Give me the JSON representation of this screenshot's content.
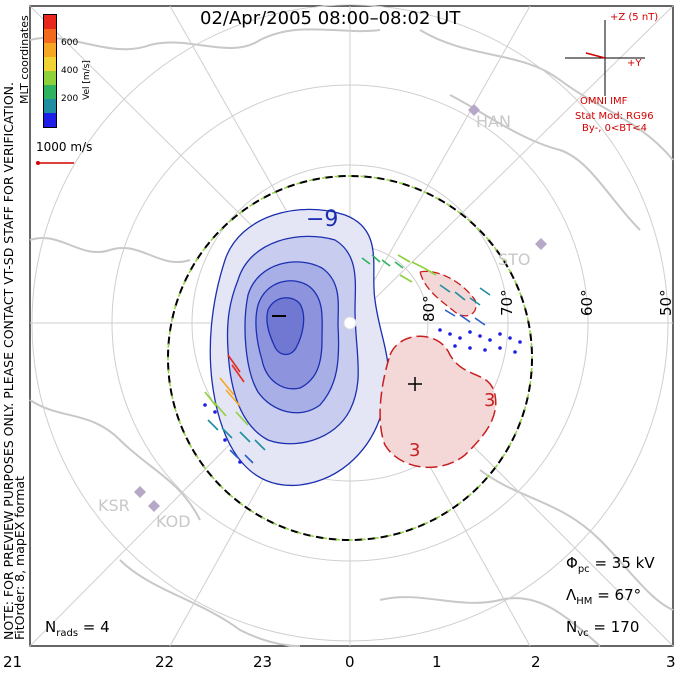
{
  "title": "02/Apr/2005 08:00–08:02 UT",
  "colorbar": {
    "label": "Vel [m/s]",
    "ticks": [
      "600",
      "400",
      "200"
    ],
    "colors": [
      "#e8281e",
      "#f26a1c",
      "#f5a623",
      "#f0d335",
      "#8fd03d",
      "#2eb35e",
      "#1e8ea0",
      "#2a5fc8",
      "#1e1ee6"
    ]
  },
  "coords_label": "MLT coordinates",
  "vector_scale": "1000 m/s",
  "imf": {
    "bz_label": "+Z (5 nT)",
    "by_label": "+Y",
    "source": "OMNI IMF",
    "model": "Stat Mod: RG96",
    "condition": "By-, 0<BT<4"
  },
  "latitude_labels": [
    "80°",
    "70°",
    "60°",
    "50°"
  ],
  "contour_labels": {
    "negative": "−9",
    "positive": "3",
    "positive2": "3"
  },
  "stations": [
    "HAN",
    "STO",
    "KSR",
    "KOD"
  ],
  "mlt_hours": [
    "21",
    "22",
    "23",
    "0",
    "1",
    "2",
    "3"
  ],
  "stats": {
    "phi_pc_sym": "Φ",
    "phi_pc_sub": "pc",
    "phi_pc_val": " = 35 kV",
    "lambda_sym": "Λ",
    "lambda_sub": "HM",
    "lambda_val": " = 67°",
    "nvc_sym": "N",
    "nvc_sub": "vc",
    "nvc_val": " = 170",
    "nrads_sym": "N",
    "nrads_sub": "rads",
    "nrads_val": " = 4"
  },
  "note": "NOTE: FOR PREVIEW PURPOSES ONLY. PLEASE CONTACT VT-SD STAFF FOR VERIFICATION.",
  "fit_order": "FitOrder: 8, mapEX format"
}
